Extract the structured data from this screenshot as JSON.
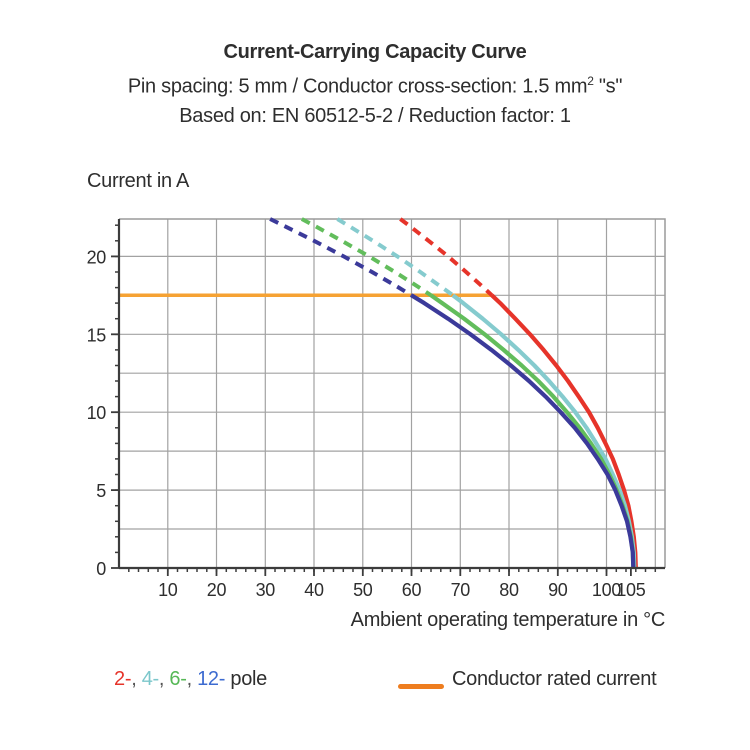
{
  "header": {
    "title": "Current-Carrying Capacity Curve",
    "subtitle1_pre": "Pin spacing: 5 mm / Conductor cross-section: 1.5 mm",
    "subtitle1_sup": "2",
    "subtitle1_post": " \"s\"",
    "subtitle2": "Based on: EN 60512-5-2 / Reduction factor: 1"
  },
  "chart_data": {
    "type": "line",
    "title": "Current-Carrying Capacity Curve",
    "xlabel": "Ambient operating temperature in °C",
    "ylabel": "Current in A",
    "xlim": [
      0,
      112
    ],
    "ylim": [
      0,
      22.4
    ],
    "x_grid_step": 10,
    "y_grid_step": 2.5,
    "x_minor_step": 2,
    "y_minor_step": 1,
    "x_major_ticks": [
      10,
      20,
      30,
      40,
      50,
      60,
      70,
      80,
      90,
      100,
      105
    ],
    "y_major_ticks": [
      0,
      5,
      10,
      15,
      20
    ],
    "grid_on": true,
    "grid_color": "#a2a2a2",
    "frame_color": "#9a9a9a",
    "axis_color": "#3c3c3c",
    "rated_current": {
      "label": "Conductor rated current",
      "value": 17.5,
      "x_start": 0,
      "x_end": 76.5,
      "color": "#f6a233"
    },
    "series": [
      {
        "name": "2-pole",
        "color": "#e6342a",
        "dashed": [
          [
            57.7,
            22.4
          ],
          [
            59.4,
            22
          ],
          [
            63.5,
            21
          ],
          [
            67.5,
            20
          ],
          [
            71.2,
            19
          ],
          [
            74.8,
            18
          ],
          [
            76.5,
            17.5
          ]
        ],
        "solid": [
          [
            76.5,
            17.5
          ],
          [
            78.2,
            17
          ],
          [
            81.3,
            16
          ],
          [
            84.3,
            15
          ],
          [
            87.1,
            14
          ],
          [
            89.7,
            13
          ],
          [
            92.1,
            12
          ],
          [
            94.3,
            11
          ],
          [
            96.4,
            10
          ],
          [
            98.2,
            9
          ],
          [
            99.8,
            8
          ],
          [
            101.3,
            7
          ],
          [
            102.5,
            6
          ],
          [
            103.6,
            5
          ],
          [
            104.5,
            4
          ],
          [
            105.1,
            3
          ],
          [
            105.6,
            2
          ],
          [
            105.9,
            1
          ],
          [
            106,
            0
          ]
        ]
      },
      {
        "name": "4-pole",
        "color": "#85cbce",
        "dashed": [
          [
            44.8,
            22.4
          ],
          [
            46.9,
            22
          ],
          [
            52.1,
            21
          ],
          [
            57.1,
            20
          ],
          [
            61.8,
            19
          ],
          [
            66.3,
            18
          ],
          [
            68.5,
            17.5
          ]
        ],
        "solid": [
          [
            68.5,
            17.5
          ],
          [
            70.6,
            17
          ],
          [
            74.6,
            16
          ],
          [
            78.4,
            15
          ],
          [
            81.9,
            14
          ],
          [
            85.2,
            13
          ],
          [
            88.2,
            12
          ],
          [
            91,
            11
          ],
          [
            93.6,
            10
          ],
          [
            95.9,
            9
          ],
          [
            97.9,
            8
          ],
          [
            99.8,
            7
          ],
          [
            101.3,
            6
          ],
          [
            102.7,
            5
          ],
          [
            103.8,
            4
          ],
          [
            104.6,
            3
          ],
          [
            105.2,
            2
          ],
          [
            105.6,
            1
          ],
          [
            105.7,
            0
          ]
        ]
      },
      {
        "name": "6-pole",
        "color": "#62bd5c",
        "dashed": [
          [
            37.5,
            22.4
          ],
          [
            39.9,
            22
          ],
          [
            45.7,
            21
          ],
          [
            51.3,
            20
          ],
          [
            56.6,
            19
          ],
          [
            61.6,
            18
          ],
          [
            64,
            17.5
          ]
        ],
        "solid": [
          [
            64,
            17.5
          ],
          [
            66.3,
            17
          ],
          [
            70.8,
            16
          ],
          [
            75,
            15
          ],
          [
            78.9,
            14
          ],
          [
            82.6,
            13
          ],
          [
            86,
            12
          ],
          [
            89.1,
            11
          ],
          [
            91.9,
            10
          ],
          [
            94.5,
            9
          ],
          [
            96.8,
            8
          ],
          [
            98.9,
            7
          ],
          [
            100.6,
            6
          ],
          [
            102.1,
            5
          ],
          [
            103.3,
            4
          ],
          [
            104.3,
            3
          ],
          [
            105,
            2
          ],
          [
            105.4,
            1
          ],
          [
            105.5,
            0
          ]
        ]
      },
      {
        "name": "12-pole",
        "color": "#3b3a9a",
        "dashed": [
          [
            31,
            22.4
          ],
          [
            33.6,
            22
          ],
          [
            40,
            21
          ],
          [
            46.1,
            20
          ],
          [
            51.9,
            19
          ],
          [
            57.4,
            18
          ],
          [
            60,
            17.5
          ]
        ],
        "solid": [
          [
            60,
            17.5
          ],
          [
            62.6,
            17
          ],
          [
            67.5,
            16
          ],
          [
            72.1,
            15
          ],
          [
            76.4,
            14
          ],
          [
            80.4,
            13
          ],
          [
            84.1,
            12
          ],
          [
            87.5,
            11
          ],
          [
            90.6,
            10
          ],
          [
            93.5,
            9
          ],
          [
            96,
            8
          ],
          [
            98.2,
            7
          ],
          [
            100.2,
            6
          ],
          [
            101.8,
            5
          ],
          [
            103.1,
            4
          ],
          [
            104.2,
            3
          ],
          [
            104.9,
            2
          ],
          [
            105.4,
            1
          ],
          [
            105.5,
            0
          ]
        ]
      }
    ]
  },
  "legend": {
    "poles": [
      {
        "label": "2-",
        "color": "#e6342a"
      },
      {
        "label": "4-",
        "color": "#7cc7cb"
      },
      {
        "label": "6-",
        "color": "#56b856"
      },
      {
        "label": "12-",
        "color": "#3d6bd0"
      }
    ],
    "separator": ", ",
    "separator_color": "#555555",
    "pole_suffix": " pole",
    "text_color": "#2e2e2e",
    "rated_label": "Conductor rated current",
    "rated_color": "#ee7d1f"
  }
}
